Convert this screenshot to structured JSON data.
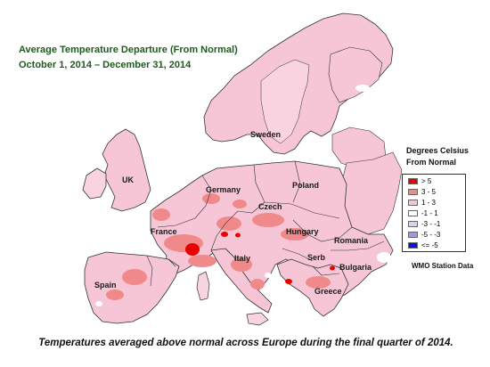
{
  "title": {
    "line1": "Average Temperature Departure  (From Normal)",
    "line2": "October 1, 2014  – December 31, 2014"
  },
  "country_labels": {
    "uk": "UK",
    "sweden": "Sweden",
    "poland": "Poland",
    "germany": "Germany",
    "czech": "Czech",
    "france": "France",
    "hungary": "Hungary",
    "romania": "Romania",
    "italy": "Italy",
    "serb": "Serb",
    "bulgaria": "Bulgaria",
    "spain": "Spain",
    "greece": "Greece"
  },
  "legend": {
    "title_line1": "Degrees Celsius",
    "title_line2": "From Normal",
    "items": [
      {
        "label": "> 5",
        "color": "#e80000"
      },
      {
        "label": "3 - 5",
        "color": "#f08a8a"
      },
      {
        "label": "1 - 3",
        "color": "#f7c6d6"
      },
      {
        "label": "-1 - 1",
        "color": "#ffffff"
      },
      {
        "label": "-3 - -1",
        "color": "#d8d4ee"
      },
      {
        "label": "-5 - -3",
        "color": "#9a9ae6"
      },
      {
        "label": "<= -5",
        "color": "#1010e0"
      }
    ]
  },
  "source_note": "WMO Station Data",
  "caption": "Temperatures  averaged above normal across Europe during the final quarter of 2014.",
  "colors": {
    "land_light": "#f7c6d6",
    "land_medium": "#f08a8a",
    "land_hot": "#e80000",
    "border": "#333333",
    "title_green": "#1f5a1f"
  }
}
